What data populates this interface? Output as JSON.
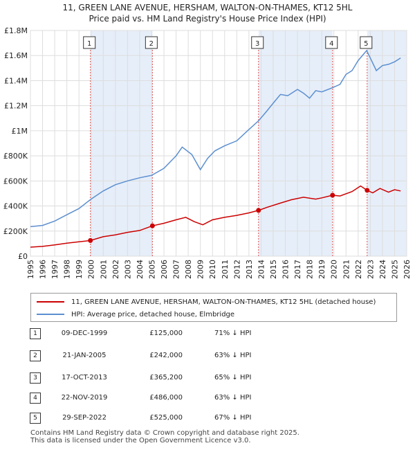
{
  "title": {
    "line1": "11, GREEN LANE AVENUE, HERSHAM, WALTON-ON-THAMES, KT12 5HL",
    "line2": "Price paid vs. HM Land Registry's House Price Index (HPI)"
  },
  "colors": {
    "price_line": "#cc0000",
    "hpi_line": "#5b8fd0",
    "shade": "#e6eef9",
    "marker": "#cc0000",
    "vline": "#dd5555"
  },
  "chart_data": {
    "type": "line",
    "title": "11, GREEN LANE AVENUE, HERSHAM, WALTON-ON-THAMES, KT12 5HL",
    "subtitle": "Price paid vs. HM Land Registry's House Price Index (HPI)",
    "xlabel": "",
    "ylabel": "",
    "xlim": [
      1995,
      2026
    ],
    "ylim": [
      0,
      1800000
    ],
    "y_ticks": [
      0,
      200000,
      400000,
      600000,
      800000,
      1000000,
      1200000,
      1400000,
      1600000,
      1800000
    ],
    "y_tick_labels": [
      "£0",
      "£200K",
      "£400K",
      "£600K",
      "£800K",
      "£1M",
      "£1.2M",
      "£1.4M",
      "£1.6M",
      "£1.8M"
    ],
    "x_ticks": [
      1995,
      1996,
      1997,
      1998,
      1999,
      2000,
      2001,
      2002,
      2003,
      2004,
      2005,
      2006,
      2007,
      2008,
      2009,
      2010,
      2011,
      2012,
      2013,
      2014,
      2015,
      2016,
      2017,
      2018,
      2019,
      2020,
      2021,
      2022,
      2023,
      2024,
      2025,
      2026
    ],
    "grid": true,
    "series": [
      {
        "name": "11, GREEN LANE AVENUE, HERSHAM, WALTON-ON-THAMES, KT12 5HL (detached house)",
        "x": [
          1995.0,
          1996.0,
          1997.0,
          1998.0,
          1999.0,
          1999.94,
          2001.0,
          2002.0,
          2003.0,
          2004.0,
          2005.05,
          2006.0,
          2007.0,
          2007.8,
          2008.5,
          2009.2,
          2010.0,
          2011.0,
          2012.0,
          2013.0,
          2013.79,
          2014.5,
          2015.5,
          2016.5,
          2017.5,
          2018.5,
          2019.0,
          2019.89,
          2020.5,
          2021.5,
          2022.2,
          2022.74,
          2023.2,
          2023.8,
          2024.5,
          2025.0,
          2025.5
        ],
        "values": [
          72000,
          78000,
          90000,
          103000,
          115000,
          125000,
          155000,
          170000,
          190000,
          205000,
          242000,
          262000,
          290000,
          310000,
          275000,
          250000,
          290000,
          310000,
          325000,
          345000,
          365200,
          390000,
          420000,
          450000,
          470000,
          455000,
          465000,
          486000,
          480000,
          515000,
          560000,
          525000,
          505000,
          540000,
          510000,
          530000,
          520000
        ]
      },
      {
        "name": "HPI: Average price, detached house, Elmbridge",
        "x": [
          1995.0,
          1996.0,
          1997.0,
          1998.0,
          1999.0,
          2000.0,
          2001.0,
          2002.0,
          2003.0,
          2004.0,
          2005.0,
          2006.0,
          2007.0,
          2007.5,
          2008.3,
          2009.0,
          2009.6,
          2010.2,
          2011.0,
          2012.0,
          2013.0,
          2013.8,
          2014.5,
          2015.0,
          2015.6,
          2016.2,
          2017.0,
          2017.5,
          2018.0,
          2018.5,
          2019.0,
          2019.8,
          2020.5,
          2021.0,
          2021.5,
          2022.0,
          2022.7,
          2023.0,
          2023.5,
          2024.0,
          2024.5,
          2025.0,
          2025.5
        ],
        "values": [
          235000,
          245000,
          280000,
          330000,
          380000,
          455000,
          520000,
          570000,
          600000,
          625000,
          645000,
          700000,
          800000,
          870000,
          810000,
          690000,
          780000,
          840000,
          880000,
          920000,
          1010000,
          1080000,
          1160000,
          1220000,
          1290000,
          1280000,
          1330000,
          1300000,
          1260000,
          1320000,
          1310000,
          1340000,
          1370000,
          1450000,
          1480000,
          1560000,
          1640000,
          1580000,
          1480000,
          1520000,
          1530000,
          1550000,
          1580000
        ]
      }
    ],
    "sales": [
      {
        "label": "1",
        "x": 1999.94,
        "value": 125000
      },
      {
        "label": "2",
        "x": 2005.05,
        "value": 242000
      },
      {
        "label": "3",
        "x": 2013.79,
        "value": 365200
      },
      {
        "label": "4",
        "x": 2019.89,
        "value": 486000
      },
      {
        "label": "5",
        "x": 2022.74,
        "value": 525000
      }
    ],
    "shaded_periods": [
      [
        1999.94,
        2005.05
      ],
      [
        2013.79,
        2019.89
      ],
      [
        2022.74,
        2026.0
      ]
    ]
  },
  "legend": {
    "price_label": "11, GREEN LANE AVENUE, HERSHAM, WALTON-ON-THAMES, KT12 5HL (detached house)",
    "hpi_label": "HPI: Average price, detached house, Elmbridge"
  },
  "transactions": [
    {
      "num": "1",
      "date": "09-DEC-1999",
      "price": "£125,000",
      "hpi": "71% ↓ HPI"
    },
    {
      "num": "2",
      "date": "21-JAN-2005",
      "price": "£242,000",
      "hpi": "63% ↓ HPI"
    },
    {
      "num": "3",
      "date": "17-OCT-2013",
      "price": "£365,200",
      "hpi": "65% ↓ HPI"
    },
    {
      "num": "4",
      "date": "22-NOV-2019",
      "price": "£486,000",
      "hpi": "63% ↓ HPI"
    },
    {
      "num": "5",
      "date": "29-SEP-2022",
      "price": "£525,000",
      "hpi": "67% ↓ HPI"
    }
  ],
  "footer": {
    "line1": "Contains HM Land Registry data © Crown copyright and database right 2025.",
    "line2": "This data is licensed under the Open Government Licence v3.0."
  }
}
